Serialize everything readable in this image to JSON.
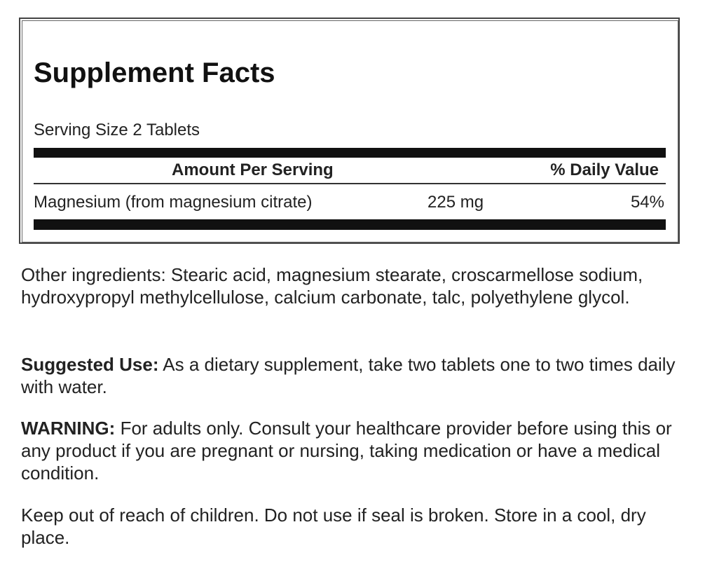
{
  "facts": {
    "title": "Supplement Facts",
    "serving_size": "Serving Size 2 Tablets",
    "header": {
      "amount": "Amount Per Serving",
      "daily_value": "% Daily Value"
    },
    "rows": [
      {
        "name": "Magnesium (from magnesium citrate)",
        "amount": "225 mg",
        "daily_value": "54%"
      }
    ]
  },
  "other_ingredients": "Other ingredients: Stearic acid, magnesium stearate, croscarmellose sodium, hydroxypropyl methylcellulose, calcium carbonate, talc, polyethylene glycol.",
  "suggested_use": {
    "label": "Suggested Use:",
    "text": "As a dietary supplement, take two tablets one to two times daily with water."
  },
  "warning": {
    "label": "WARNING:",
    "text": "For adults only. Consult your healthcare provider before using this or any product if you are pregnant or nursing, taking medication or have a medical condition."
  },
  "storage": "Keep out of reach of children. Do not use if seal is broken. Store in a cool, dry place."
}
